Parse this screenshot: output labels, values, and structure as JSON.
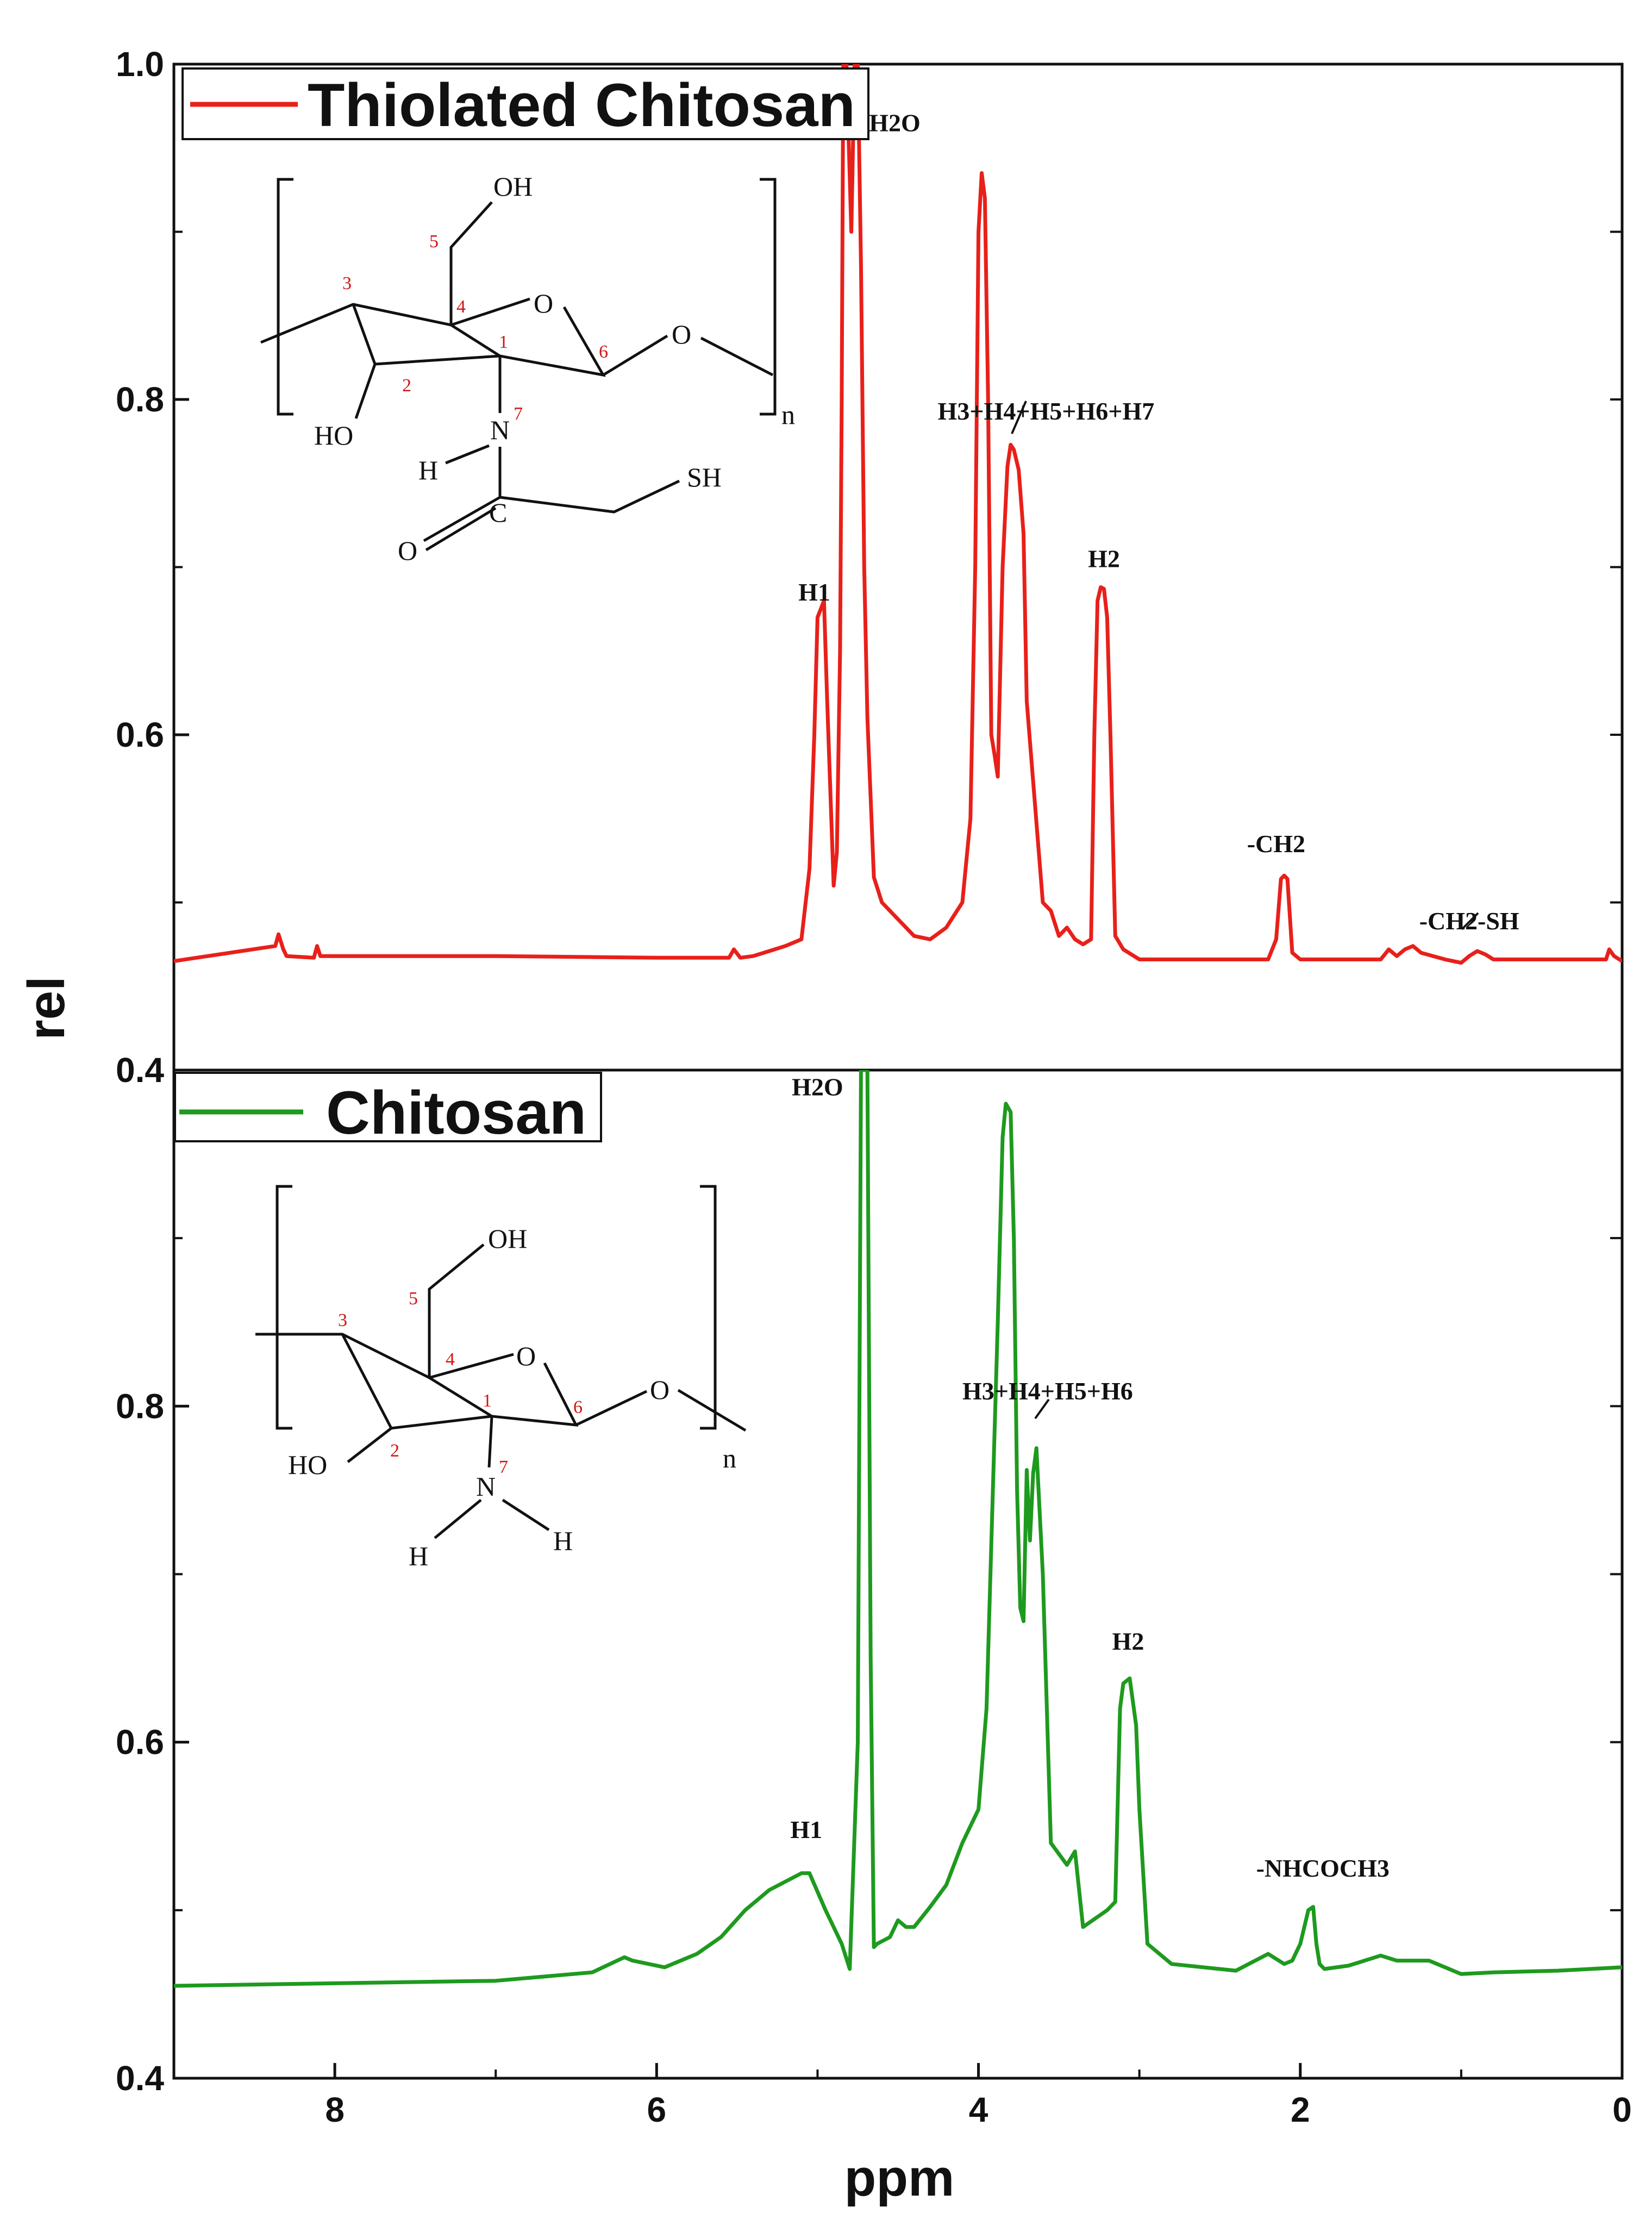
{
  "chart_data": [
    {
      "type": "line",
      "panel": "top",
      "title": "",
      "xlabel": "ppm",
      "ylabel": "rel",
      "xlim": [
        9,
        0
      ],
      "ylim": [
        0.4,
        1.0
      ],
      "y_ticks": [
        "0.4",
        "0.6",
        "0.8",
        "1.0"
      ],
      "y_tick_values": [
        0.4,
        0.6,
        0.8,
        1.0
      ],
      "series": [
        {
          "name": "Thiolated Chitosan",
          "color": "#e8201a",
          "x": [
            9.0,
            8.37,
            8.35,
            8.32,
            8.3,
            8.13,
            8.11,
            8.09,
            8.0,
            7.0,
            6.0,
            5.55,
            5.52,
            5.48,
            5.4,
            5.3,
            5.2,
            5.1,
            5.05,
            5.02,
            5.0,
            4.98,
            4.96,
            4.94,
            4.9,
            4.88,
            4.86,
            4.85,
            4.84,
            4.82,
            4.79,
            4.77,
            4.75,
            4.73,
            4.71,
            4.69,
            4.65,
            4.6,
            4.5,
            4.4,
            4.3,
            4.2,
            4.1,
            4.05,
            4.02,
            4.0,
            3.98,
            3.96,
            3.94,
            3.92,
            3.9,
            3.88,
            3.85,
            3.82,
            3.8,
            3.78,
            3.75,
            3.72,
            3.7,
            3.6,
            3.55,
            3.5,
            3.45,
            3.4,
            3.35,
            3.3,
            3.28,
            3.26,
            3.24,
            3.22,
            3.2,
            3.18,
            3.15,
            3.1,
            3.0,
            2.5,
            2.2,
            2.15,
            2.12,
            2.1,
            2.08,
            2.05,
            2.0,
            1.5,
            1.45,
            1.4,
            1.35,
            1.3,
            1.25,
            1.1,
            1.0,
            0.95,
            0.9,
            0.85,
            0.8,
            0.5,
            0.3,
            0.2,
            0.1,
            0.08,
            0.05,
            0.0
          ],
          "y": [
            0.465,
            0.474,
            0.481,
            0.472,
            0.468,
            0.467,
            0.474,
            0.468,
            0.468,
            0.468,
            0.467,
            0.467,
            0.472,
            0.467,
            0.468,
            0.471,
            0.474,
            0.478,
            0.52,
            0.6,
            0.67,
            0.675,
            0.68,
            0.62,
            0.51,
            0.53,
            0.65,
            0.8,
            1.0,
            1.0,
            0.9,
            1.0,
            1.0,
            0.88,
            0.7,
            0.61,
            0.515,
            0.5,
            0.49,
            0.48,
            0.478,
            0.485,
            0.5,
            0.55,
            0.7,
            0.9,
            0.935,
            0.92,
            0.8,
            0.6,
            0.588,
            0.575,
            0.7,
            0.76,
            0.773,
            0.77,
            0.758,
            0.72,
            0.62,
            0.5,
            0.495,
            0.48,
            0.485,
            0.478,
            0.475,
            0.478,
            0.6,
            0.68,
            0.688,
            0.687,
            0.67,
            0.6,
            0.48,
            0.472,
            0.466,
            0.466,
            0.466,
            0.478,
            0.514,
            0.516,
            0.514,
            0.47,
            0.466,
            0.466,
            0.472,
            0.468,
            0.472,
            0.474,
            0.47,
            0.466,
            0.464,
            0.468,
            0.471,
            0.469,
            0.466,
            0.466,
            0.466,
            0.466,
            0.466,
            0.472,
            0.468,
            0.465
          ]
        }
      ],
      "annotations": [
        {
          "text": "H1",
          "x": 5.02,
          "y": 0.68
        },
        {
          "text": "H2O",
          "x": 4.52,
          "y": 0.96
        },
        {
          "text": "H3+H4+H5+H6+H7",
          "x": 3.58,
          "y": 0.788
        },
        {
          "text": "H2",
          "x": 3.22,
          "y": 0.7
        },
        {
          "text": "-CH2",
          "x": 2.15,
          "y": 0.53
        },
        {
          "text": "-CH2-SH",
          "x": 0.95,
          "y": 0.484
        }
      ],
      "legend": "top-left"
    },
    {
      "type": "line",
      "panel": "bottom",
      "title": "",
      "xlabel": "ppm",
      "ylabel": "rel",
      "xlim": [
        9,
        0
      ],
      "ylim": [
        0.4,
        1.0
      ],
      "x_ticks": [
        "8",
        "6",
        "4",
        "2",
        "0"
      ],
      "x_tick_values": [
        8,
        6,
        4,
        2,
        0
      ],
      "y_ticks": [
        "0.4",
        "0.6",
        "0.8"
      ],
      "y_tick_values": [
        0.4,
        0.6,
        0.8
      ],
      "series": [
        {
          "name": "Chitosan",
          "color": "#1e9a1e",
          "x": [
            9.0,
            7.0,
            6.4,
            6.2,
            6.15,
            5.95,
            5.75,
            5.6,
            5.45,
            5.3,
            5.1,
            5.05,
            4.95,
            4.85,
            4.8,
            4.75,
            4.73,
            4.71,
            4.69,
            4.67,
            4.65,
            4.63,
            4.55,
            4.5,
            4.45,
            4.4,
            4.3,
            4.2,
            4.1,
            4.0,
            3.95,
            3.88,
            3.85,
            3.83,
            3.8,
            3.78,
            3.76,
            3.74,
            3.72,
            3.7,
            3.68,
            3.66,
            3.64,
            3.6,
            3.55,
            3.45,
            3.4,
            3.35,
            3.2,
            3.15,
            3.12,
            3.1,
            3.06,
            3.02,
            3.0,
            2.95,
            2.8,
            2.4,
            2.2,
            2.1,
            2.05,
            2.0,
            1.95,
            1.92,
            1.9,
            1.88,
            1.85,
            1.7,
            1.5,
            1.4,
            1.2,
            1.0,
            0.8,
            0.4,
            0.2,
            0.0
          ],
          "y": [
            0.455,
            0.458,
            0.463,
            0.472,
            0.47,
            0.466,
            0.474,
            0.484,
            0.5,
            0.512,
            0.522,
            0.522,
            0.5,
            0.48,
            0.465,
            0.6,
            1.0,
            1.0,
            1.0,
            0.65,
            0.478,
            0.48,
            0.484,
            0.494,
            0.49,
            0.49,
            0.502,
            0.515,
            0.54,
            0.56,
            0.62,
            0.85,
            0.96,
            0.98,
            0.975,
            0.9,
            0.75,
            0.68,
            0.672,
            0.762,
            0.72,
            0.76,
            0.775,
            0.7,
            0.54,
            0.527,
            0.535,
            0.49,
            0.5,
            0.505,
            0.62,
            0.635,
            0.638,
            0.61,
            0.56,
            0.48,
            0.468,
            0.464,
            0.474,
            0.468,
            0.47,
            0.48,
            0.5,
            0.502,
            0.48,
            0.468,
            0.465,
            0.467,
            0.473,
            0.47,
            0.47,
            0.462,
            0.463,
            0.464,
            0.465,
            0.466
          ]
        }
      ],
      "annotations": [
        {
          "text": "H2O",
          "x": 5.0,
          "y": 0.985
        },
        {
          "text": "H1",
          "x": 5.07,
          "y": 0.543
        },
        {
          "text": "H3+H4+H5+H6",
          "x": 3.57,
          "y": 0.804
        },
        {
          "text": "H2",
          "x": 3.07,
          "y": 0.655
        },
        {
          "text": "-NHCOCH3",
          "x": 1.86,
          "y": 0.52
        }
      ],
      "legend": "top-left"
    }
  ],
  "structures": {
    "thiolated": {
      "oh_top": "OH",
      "ring_o": "O",
      "link_o": "O",
      "ho": "HO",
      "n": "N",
      "h": "H",
      "c": "C",
      "o_carbonyl": "O",
      "sh": "SH",
      "sub_n": "n",
      "nums": [
        "1",
        "2",
        "3",
        "4",
        "5",
        "6",
        "7"
      ]
    },
    "chitosan": {
      "oh_top": "OH",
      "ring_o": "O",
      "link_o": "O",
      "ho": "HO",
      "n": "N",
      "h_left": "H",
      "h_right": "H",
      "sub_n": "n",
      "nums": [
        "1",
        "2",
        "3",
        "4",
        "5",
        "6",
        "7"
      ]
    }
  }
}
